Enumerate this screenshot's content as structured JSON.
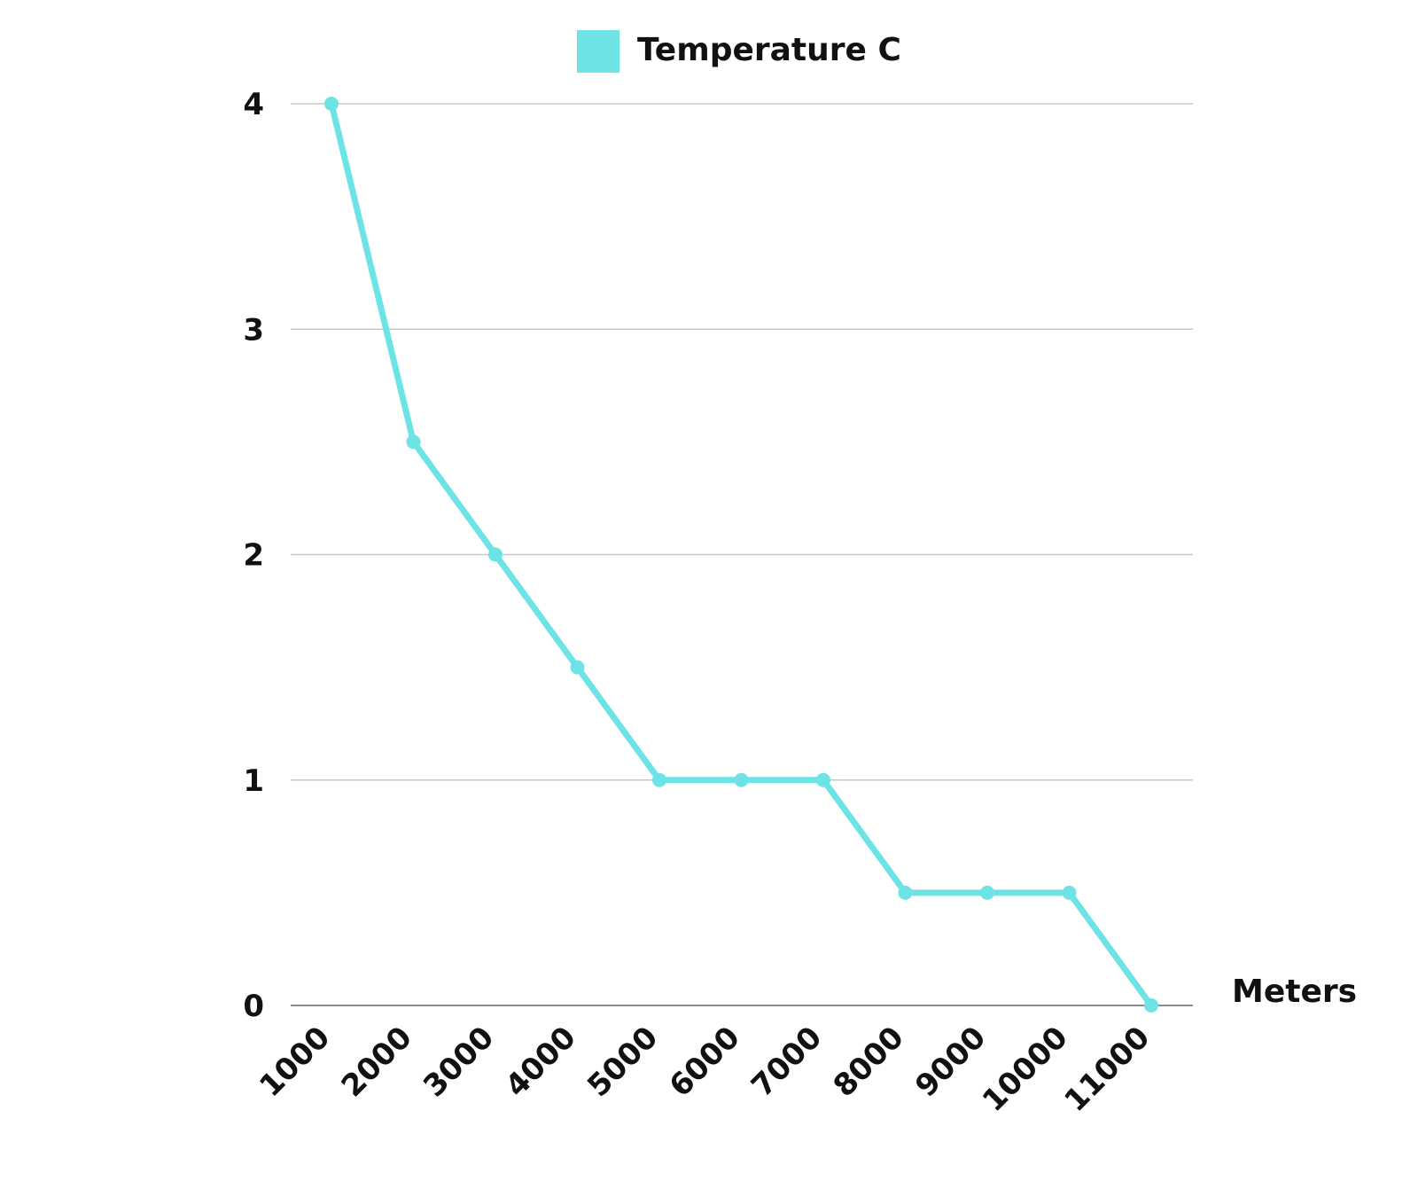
{
  "chart_data": {
    "type": "line",
    "x": [
      1000,
      2000,
      3000,
      4000,
      5000,
      6000,
      7000,
      8000,
      9000,
      10000,
      11000
    ],
    "x_tick_labels": [
      "1000",
      "2000",
      "3000",
      "4000",
      "5000",
      "6000",
      "7000",
      "8000",
      "9000",
      "10000",
      "11000"
    ],
    "series": [
      {
        "name": "Temperature C",
        "values": [
          4,
          2.5,
          2,
          1.5,
          1,
          1,
          1,
          0.5,
          0.5,
          0.5,
          0
        ],
        "color": "#6ee3e6"
      }
    ],
    "xlabel": "Meters",
    "ylabel": "",
    "ylim": [
      0,
      4
    ],
    "y_ticks": [
      0,
      1,
      2,
      3,
      4
    ],
    "grid": true,
    "legend": "top-center",
    "colors": {
      "series": "#6ee3e6",
      "grid": "#c8c8c8",
      "baseline": "#8a8a8a",
      "text": "#111111"
    }
  }
}
